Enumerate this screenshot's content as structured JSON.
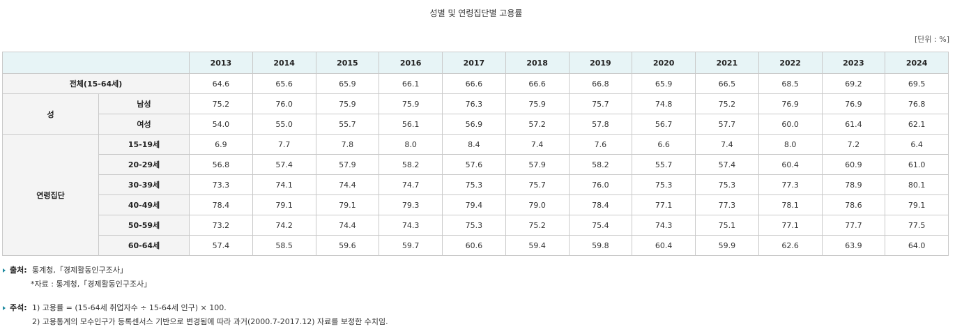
{
  "title": "성별 및 연령집단별 고용률",
  "unit": "[단위 : %]",
  "table": {
    "years": [
      "2013",
      "2014",
      "2015",
      "2016",
      "2017",
      "2018",
      "2019",
      "2020",
      "2021",
      "2022",
      "2023",
      "2024"
    ],
    "total": {
      "label": "전체(15-64세)",
      "values": [
        "64.6",
        "65.6",
        "65.9",
        "66.1",
        "66.6",
        "66.6",
        "66.8",
        "65.9",
        "66.5",
        "68.5",
        "69.2",
        "69.5"
      ]
    },
    "sex": {
      "group_label": "성",
      "rows": [
        {
          "label": "남성",
          "values": [
            "75.2",
            "76.0",
            "75.9",
            "75.9",
            "76.3",
            "75.9",
            "75.7",
            "74.8",
            "75.2",
            "76.9",
            "76.9",
            "76.8"
          ]
        },
        {
          "label": "여성",
          "values": [
            "54.0",
            "55.0",
            "55.7",
            "56.1",
            "56.9",
            "57.2",
            "57.8",
            "56.7",
            "57.7",
            "60.0",
            "61.4",
            "62.1"
          ]
        }
      ]
    },
    "age": {
      "group_label": "연령집단",
      "rows": [
        {
          "label": "15-19세",
          "values": [
            "6.9",
            "7.7",
            "7.8",
            "8.0",
            "8.4",
            "7.4",
            "7.6",
            "6.6",
            "7.4",
            "8.0",
            "7.2",
            "6.4"
          ]
        },
        {
          "label": "20-29세",
          "values": [
            "56.8",
            "57.4",
            "57.9",
            "58.2",
            "57.6",
            "57.9",
            "58.2",
            "55.7",
            "57.4",
            "60.4",
            "60.9",
            "61.0"
          ]
        },
        {
          "label": "30-39세",
          "values": [
            "73.3",
            "74.1",
            "74.4",
            "74.7",
            "75.3",
            "75.7",
            "76.0",
            "75.3",
            "75.3",
            "77.3",
            "78.9",
            "80.1"
          ]
        },
        {
          "label": "40-49세",
          "values": [
            "78.4",
            "79.1",
            "79.1",
            "79.3",
            "79.4",
            "79.0",
            "78.4",
            "77.1",
            "77.3",
            "78.1",
            "78.6",
            "79.1"
          ]
        },
        {
          "label": "50-59세",
          "values": [
            "73.2",
            "74.2",
            "74.4",
            "74.3",
            "75.3",
            "75.2",
            "75.4",
            "74.3",
            "75.1",
            "77.1",
            "77.7",
            "77.5"
          ]
        },
        {
          "label": "60-64세",
          "values": [
            "57.4",
            "58.5",
            "59.6",
            "59.7",
            "60.6",
            "59.4",
            "59.8",
            "60.4",
            "59.9",
            "62.6",
            "63.9",
            "64.0"
          ]
        }
      ]
    }
  },
  "notes": {
    "source_label": "출처:",
    "source_text": "통계청,「경제활동인구조사」",
    "source_sub": "*자료 : 통계청,「경제활동인구조사」",
    "remark_label": "주석:",
    "remark_1": "1) 고용률 = (15-64세 취업자수 ÷ 15-64세 인구) × 100.",
    "remark_2": "2) 고용통계의 모수인구가 등록센서스 기반으로 변경됨에 따라 과거(2000.7-2017.12) 자료를 보정한 수치임."
  },
  "colors": {
    "header_bg": "#e7f4f6",
    "row_header_bg": "#f4f4f4",
    "border": "#c9c9c9",
    "bullet": "#1f8aa0"
  }
}
